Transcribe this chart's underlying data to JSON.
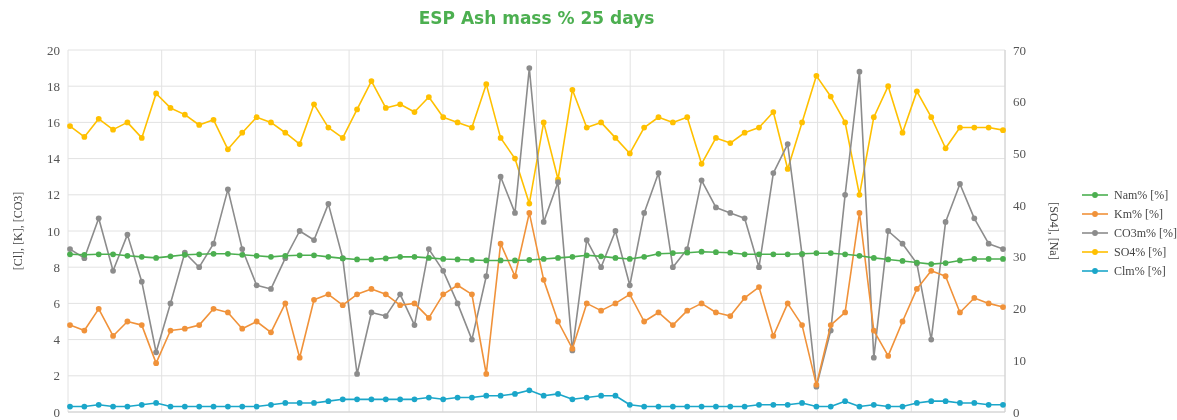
{
  "chart_data": {
    "type": "line",
    "title": "ESP Ash mass % 25 days",
    "ylabel": "[Cl], [K], [CO3]",
    "y2label": "[SO4], [Na]",
    "categories": [
      null,
      null,
      null,
      null,
      null,
      null,
      null,
      null,
      null,
      null,
      null,
      null,
      null,
      null,
      null,
      null,
      null,
      null,
      null,
      null,
      null,
      null,
      null,
      null,
      null,
      null,
      null,
      null,
      null,
      null,
      null,
      null,
      null,
      null,
      null,
      null,
      null,
      null,
      null,
      null,
      null,
      null,
      null,
      null,
      null,
      null,
      null,
      null,
      null,
      null,
      null,
      null,
      null,
      null,
      null,
      null,
      null,
      null,
      null,
      null,
      null,
      null,
      null,
      null,
      null,
      null
    ],
    "ylim": [
      0,
      20
    ],
    "yticks": [
      0,
      2,
      4,
      6,
      8,
      10,
      12,
      14,
      16,
      18,
      20
    ],
    "y2lim": [
      0,
      70
    ],
    "y2ticks": [
      0,
      10,
      20,
      30,
      40,
      50,
      60,
      70
    ],
    "grid": true,
    "legend": "right",
    "marker": "circle",
    "line_style": "solid",
    "series": [
      {
        "name": "Nam% [%]",
        "color": "#4caf50",
        "axis": "y2",
        "values": [
          30.5,
          30.4,
          30.5,
          30.5,
          30.2,
          30.0,
          29.8,
          30.1,
          30.4,
          30.5,
          30.6,
          30.6,
          30.4,
          30.2,
          30.0,
          30.2,
          30.3,
          30.3,
          30.0,
          29.7,
          29.5,
          29.5,
          29.7,
          30.0,
          30.0,
          29.8,
          29.6,
          29.5,
          29.4,
          29.3,
          29.3,
          29.3,
          29.4,
          29.6,
          29.8,
          30.0,
          30.3,
          30.1,
          29.8,
          29.6,
          30.0,
          30.6,
          30.7,
          30.8,
          31.0,
          30.9,
          30.8,
          30.5,
          30.5,
          30.5,
          30.5,
          30.6,
          30.7,
          30.7,
          30.5,
          30.2,
          29.8,
          29.5,
          29.2,
          28.9,
          28.6,
          28.8,
          29.3,
          29.6,
          29.6,
          29.6
        ]
      },
      {
        "name": "Km% [%]",
        "color": "#f0923a",
        "values": [
          4.8,
          4.5,
          5.7,
          4.2,
          5,
          4.8,
          2.7,
          4.5,
          4.6,
          4.8,
          5.7,
          5.5,
          4.6,
          5,
          4.4,
          6,
          3,
          6.2,
          6.5,
          5.9,
          6.5,
          6.8,
          6.5,
          5.9,
          6,
          5.2,
          6.5,
          7,
          6.5,
          2.1,
          9.3,
          7.5,
          11,
          7.3,
          5,
          3.5,
          6,
          5.6,
          6,
          6.5,
          5,
          5.5,
          4.8,
          5.6,
          6,
          5.5,
          5.3,
          6.3,
          6.9,
          4.2,
          6,
          4.8,
          1.5,
          4.8,
          5.5,
          11,
          4.5,
          3.1,
          5,
          6.8,
          7.8,
          7.5,
          5.5,
          6.3,
          6,
          5.8
        ]
      },
      {
        "name": "CO3m% [%]",
        "color": "#8c8c8c",
        "values": [
          9,
          8.5,
          10.7,
          7.8,
          9.8,
          7.2,
          3.3,
          6,
          8.8,
          8,
          9.3,
          12.3,
          9,
          7,
          6.8,
          8.5,
          10,
          9.5,
          11.5,
          8.5,
          2.1,
          5.5,
          5.3,
          6.5,
          4.8,
          9,
          7.8,
          6,
          4,
          7.5,
          13,
          11,
          19,
          10.5,
          12.7,
          3.4,
          9.5,
          8,
          10,
          7,
          11,
          13.2,
          8,
          9,
          12.8,
          11.3,
          11,
          10.7,
          8,
          13.2,
          14.8,
          8.7,
          1.4,
          4.5,
          12,
          18.8,
          3,
          10,
          9.3,
          8.2,
          4,
          10.5,
          12.6,
          10.7,
          9.3,
          9
        ]
      },
      {
        "name": "SO4% [%]",
        "color": "#ffc000",
        "axis": "y2",
        "values": [
          55.3,
          53.2,
          56.7,
          54.6,
          56,
          53,
          61.6,
          58.8,
          57.5,
          55.5,
          56.5,
          50.8,
          54,
          57,
          56,
          54,
          51.8,
          59.5,
          55,
          53,
          58.5,
          64,
          58.8,
          59.5,
          58,
          60.9,
          57,
          56,
          55,
          63.4,
          53,
          49,
          40.3,
          56,
          45,
          62.3,
          55,
          56,
          53,
          50,
          55,
          57,
          56,
          57,
          48,
          53,
          52,
          54,
          55,
          58,
          47,
          56,
          65,
          61,
          56,
          42,
          57,
          63,
          54,
          62,
          57,
          51,
          55,
          55,
          55,
          54.5
        ]
      },
      {
        "name": "Clm% [%]",
        "color": "#1ba6c9",
        "values": [
          0.3,
          0.3,
          0.4,
          0.3,
          0.3,
          0.4,
          0.5,
          0.3,
          0.3,
          0.3,
          0.3,
          0.3,
          0.3,
          0.3,
          0.4,
          0.5,
          0.5,
          0.5,
          0.6,
          0.7,
          0.7,
          0.7,
          0.7,
          0.7,
          0.7,
          0.8,
          0.7,
          0.8,
          0.8,
          0.9,
          0.9,
          1.0,
          1.2,
          0.9,
          1.0,
          0.7,
          0.8,
          0.9,
          0.9,
          0.4,
          0.3,
          0.3,
          0.3,
          0.3,
          0.3,
          0.3,
          0.3,
          0.3,
          0.4,
          0.4,
          0.4,
          0.5,
          0.3,
          0.3,
          0.6,
          0.3,
          0.4,
          0.3,
          0.3,
          0.5,
          0.6,
          0.6,
          0.5,
          0.5,
          0.4,
          0.4
        ]
      }
    ]
  }
}
